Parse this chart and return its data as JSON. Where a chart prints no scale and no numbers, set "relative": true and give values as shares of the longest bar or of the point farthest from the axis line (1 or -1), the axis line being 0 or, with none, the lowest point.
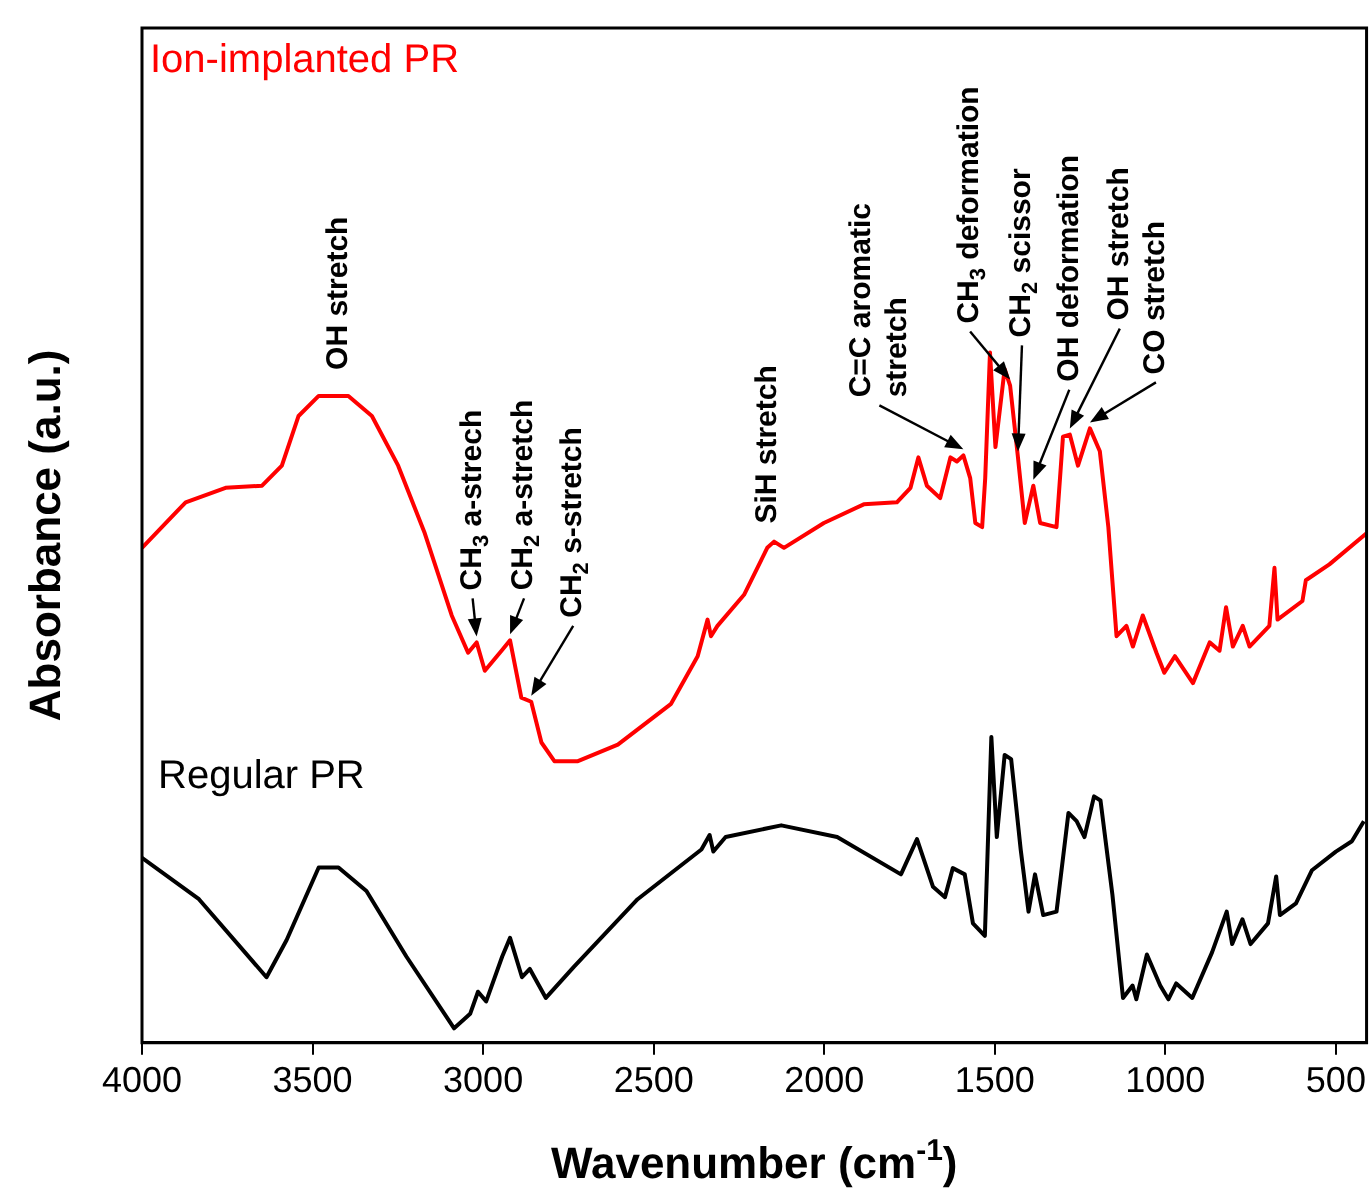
{
  "chart_data": {
    "type": "line",
    "relative": true,
    "marker": "none",
    "xlabel": "Wavenumber (cm$^{-1}$)",
    "ylabel": "Absorbance (a.u.)",
    "xlim": [
      4000,
      410
    ],
    "xticks": [
      4000,
      3500,
      3000,
      2500,
      2000,
      1500,
      1000,
      500
    ],
    "series": [
      {
        "name": "Ion-implanted PR",
        "color": "#ff0000",
        "x": [
          4000,
          3872,
          3755,
          3648,
          3590,
          3541,
          3482,
          3395,
          3326,
          3249,
          3171,
          3092,
          3044,
          3019,
          2995,
          2946,
          2921,
          2888,
          2859,
          2829,
          2791,
          2722,
          2605,
          2449,
          2371,
          2342,
          2332,
          2313,
          2235,
          2167,
          2147,
          2118,
          2001,
          1884,
          1787,
          1747,
          1724,
          1699,
          1660,
          1630,
          1611,
          1592,
          1572,
          1557,
          1537,
          1528,
          1514,
          1498,
          1471,
          1455,
          1432,
          1412,
          1387,
          1367,
          1319,
          1300,
          1280,
          1256,
          1221,
          1192,
          1167,
          1143,
          1114,
          1095,
          1066,
          1026,
          1003,
          972,
          919,
          870,
          841,
          822,
          802,
          773,
          753,
          695,
          680,
          671,
          598,
          588,
          519,
          410
        ],
        "values": [
          0.717,
          0.783,
          0.804,
          0.807,
          0.836,
          0.908,
          0.937,
          0.937,
          0.908,
          0.836,
          0.738,
          0.619,
          0.565,
          0.58,
          0.539,
          0.568,
          0.583,
          0.5,
          0.494,
          0.435,
          0.408,
          0.408,
          0.432,
          0.491,
          0.56,
          0.613,
          0.589,
          0.604,
          0.649,
          0.717,
          0.726,
          0.717,
          0.753,
          0.78,
          0.783,
          0.804,
          0.848,
          0.807,
          0.789,
          0.848,
          0.842,
          0.851,
          0.818,
          0.753,
          0.747,
          0.818,
          1.0,
          0.863,
          0.976,
          0.952,
          0.848,
          0.753,
          0.807,
          0.753,
          0.747,
          0.878,
          0.881,
          0.836,
          0.89,
          0.857,
          0.747,
          0.589,
          0.604,
          0.574,
          0.619,
          0.565,
          0.536,
          0.56,
          0.521,
          0.58,
          0.568,
          0.631,
          0.574,
          0.604,
          0.574,
          0.604,
          0.688,
          0.613,
          0.64,
          0.67,
          0.693,
          0.738
        ]
      },
      {
        "name": "Regular PR",
        "color": "#000000",
        "x": [
          4000,
          3833,
          3635,
          3576,
          3482,
          3424,
          3342,
          3225,
          3085,
          3038,
          3015,
          2991,
          2944,
          2921,
          2886,
          2863,
          2816,
          2734,
          2547,
          2360,
          2336,
          2325,
          2289,
          2126,
          1962,
          1775,
          1728,
          1681,
          1646,
          1623,
          1588,
          1564,
          1529,
          1510,
          1494,
          1471,
          1452,
          1424,
          1401,
          1382,
          1358,
          1319,
          1284,
          1260,
          1237,
          1209,
          1190,
          1155,
          1124,
          1096,
          1085,
          1054,
          1015,
          991,
          968,
          921,
          863,
          820,
          804,
          774,
          750,
          699,
          675,
          664,
          617,
          570,
          500,
          453,
          418
        ],
        "values": [
          0.268,
          0.208,
          0.095,
          0.149,
          0.254,
          0.254,
          0.22,
          0.125,
          0.021,
          0.042,
          0.074,
          0.06,
          0.125,
          0.152,
          0.095,
          0.107,
          0.065,
          0.11,
          0.208,
          0.28,
          0.301,
          0.277,
          0.298,
          0.315,
          0.298,
          0.244,
          0.295,
          0.226,
          0.211,
          0.253,
          0.244,
          0.173,
          0.155,
          0.443,
          0.298,
          0.417,
          0.411,
          0.28,
          0.19,
          0.244,
          0.185,
          0.19,
          0.333,
          0.321,
          0.298,
          0.357,
          0.351,
          0.214,
          0.065,
          0.083,
          0.063,
          0.128,
          0.083,
          0.063,
          0.086,
          0.065,
          0.131,
          0.19,
          0.143,
          0.179,
          0.143,
          0.173,
          0.241,
          0.185,
          0.202,
          0.25,
          0.277,
          0.292,
          0.321
        ]
      }
    ],
    "annotations": [
      {
        "text": "OH stretch",
        "x": 3440,
        "y": 0.937
      },
      {
        "text": "CH$_{3}$ a-strech",
        "x": 3019,
        "y": 0.58
      },
      {
        "text": "CH$_{2}$ a-stretch",
        "x": 2921,
        "y": 0.583
      },
      {
        "text": "CH$_{2}$ s-stretch",
        "x": 2859,
        "y": 0.494
      },
      {
        "text": "SiH stretch",
        "x": 2147,
        "y": 0.726
      },
      {
        "text": "C=C aromatic\nstretch",
        "x": 1592,
        "y": 0.851
      },
      {
        "text": "CH$_{3}$ deformation",
        "x": 1455,
        "y": 0.952
      },
      {
        "text": "CH$_{2}$ scissor",
        "x": 1432,
        "y": 0.848
      },
      {
        "text": "OH deformation",
        "x": 1387,
        "y": 0.807
      },
      {
        "text": "OH stretch",
        "x": 1280,
        "y": 0.881
      },
      {
        "text": "CO stretch",
        "x": 1221,
        "y": 0.89
      }
    ]
  }
}
